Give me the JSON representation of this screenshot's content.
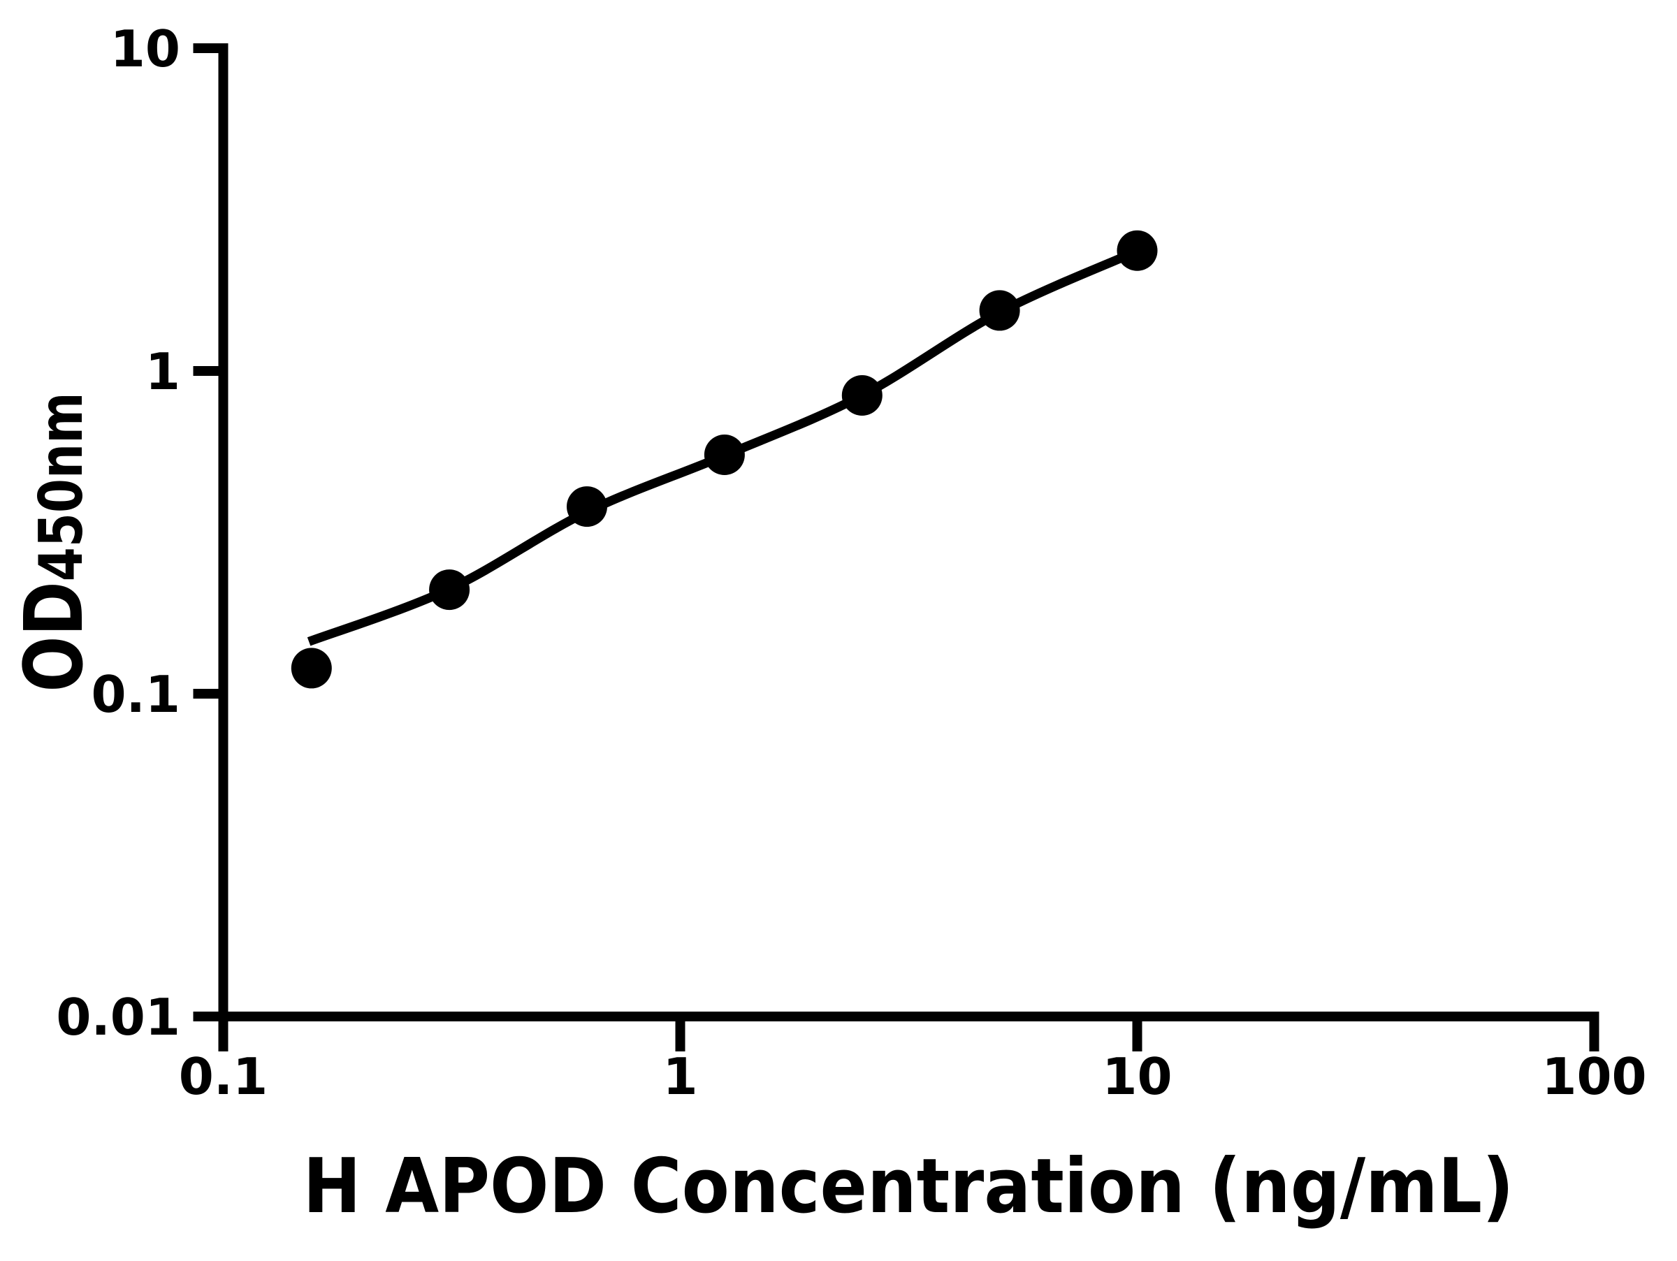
{
  "figure": {
    "background": "#ffffff",
    "ink": "#000000"
  },
  "chart_data": {
    "type": "scatter",
    "xlabel": "H APOD Concentration (ng/mL)",
    "ylabel": {
      "main": "OD",
      "sub": "450nm"
    },
    "x_scale": "log",
    "y_scale": "log",
    "xlim": [
      0.1,
      100
    ],
    "ylim": [
      0.01,
      10
    ],
    "x_ticks": [
      {
        "value": 0.1,
        "label": "0.1"
      },
      {
        "value": 1,
        "label": "1"
      },
      {
        "value": 10,
        "label": "10"
      },
      {
        "value": 100,
        "label": "100"
      }
    ],
    "y_ticks": [
      {
        "value": 10,
        "label": "10"
      },
      {
        "value": 1,
        "label": "1"
      },
      {
        "value": 0.1,
        "label": "0.1"
      },
      {
        "value": 0.01,
        "label": "0.01"
      }
    ],
    "grid": false,
    "legend": "none",
    "series": [
      {
        "name": "standard-points",
        "marker": "filled-circle",
        "color": "#000000",
        "points": [
          [
            0.156,
            0.12
          ],
          [
            0.3125,
            0.21
          ],
          [
            0.625,
            0.38
          ],
          [
            1.25,
            0.55
          ],
          [
            2.5,
            0.84
          ],
          [
            5,
            1.54
          ],
          [
            10,
            2.36
          ]
        ]
      }
    ],
    "fit_curve": {
      "name": "fitted-standard-curve",
      "color": "#000000",
      "points": [
        [
          0.154,
          0.145
        ],
        [
          0.3125,
          0.211
        ],
        [
          0.625,
          0.366
        ],
        [
          1.25,
          0.547
        ],
        [
          2.5,
          0.84
        ],
        [
          5,
          1.52
        ],
        [
          10,
          2.35
        ]
      ]
    }
  }
}
